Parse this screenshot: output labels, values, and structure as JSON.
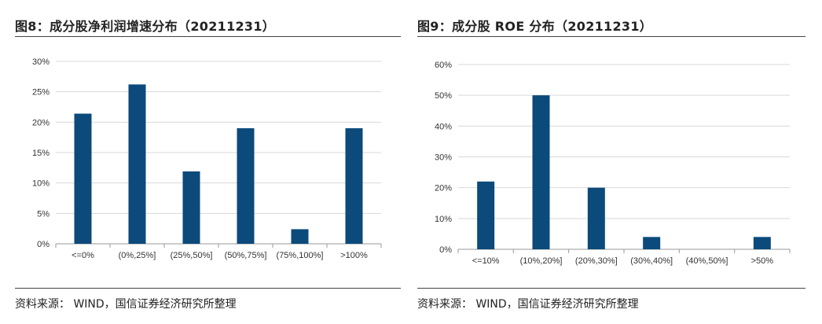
{
  "colors": {
    "bar": "#0b4a7a",
    "grid": "#d9d9d9",
    "axis": "#9a9a9a"
  },
  "chart_data": [
    {
      "type": "bar",
      "title": "图8：成分股净利润增速分布（20211231）",
      "categories": [
        "<=0%",
        "(0%,25%]",
        "(25%,50%]",
        "(50%,75%]",
        "(75%,100%]",
        ">100%"
      ],
      "values": [
        21.4,
        26.2,
        11.9,
        19.0,
        2.4,
        19.0
      ],
      "y_ticks": [
        "0%",
        "5%",
        "10%",
        "15%",
        "20%",
        "25%",
        "30%"
      ],
      "ylim": [
        0,
        30
      ],
      "grid": true,
      "source": "资料来源：  WIND，国信证券经济研究所整理"
    },
    {
      "type": "bar",
      "title": "图9：成分股 ROE 分布（20211231）",
      "categories": [
        "<=10%",
        "(10%,20%]",
        "(20%,30%]",
        "(30%,40%]",
        "(40%,50%]",
        ">50%"
      ],
      "values": [
        22,
        50,
        20,
        4,
        0,
        4
      ],
      "y_ticks": [
        "0%",
        "10%",
        "20%",
        "30%",
        "40%",
        "50%",
        "60%"
      ],
      "ylim": [
        0,
        60
      ],
      "grid": true,
      "source": "资料来源：  WIND，国信证券经济研究所整理"
    }
  ]
}
